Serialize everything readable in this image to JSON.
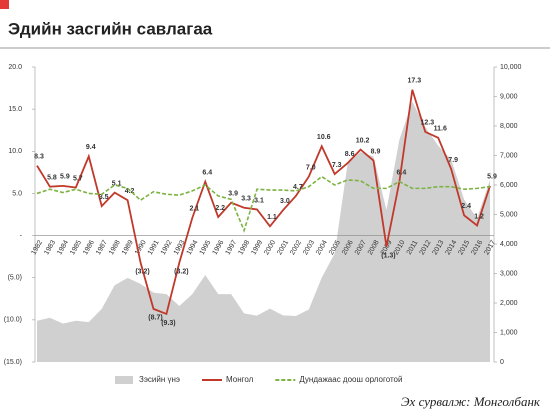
{
  "chart_data": {
    "type": "line",
    "title": "Эдийн засгийн савлагаа",
    "source": "Эх сурвалж: Монголбанк",
    "categories": [
      "1982",
      "1983",
      "1984",
      "1985",
      "1986",
      "1987",
      "1988",
      "1989",
      "1990",
      "1991",
      "1992",
      "1993",
      "1994",
      "1995",
      "1996",
      "1997",
      "1998",
      "1999",
      "2000",
      "2001",
      "2002",
      "2003",
      "2004",
      "2005",
      "2006",
      "2007",
      "2008",
      "2009",
      "2010",
      "2011",
      "2012",
      "2013",
      "2014",
      "2015",
      "2016",
      "2017"
    ],
    "ylim": [
      -15,
      20
    ],
    "yticks": [
      {
        "value": -15,
        "label": "(15.0)"
      },
      {
        "value": -10,
        "label": "(10.0)"
      },
      {
        "value": -5,
        "label": "(5.0)"
      },
      {
        "value": 0,
        "label": "-"
      },
      {
        "value": 5,
        "label": "5.0"
      },
      {
        "value": 10,
        "label": "10.0"
      },
      {
        "value": 15,
        "label": "15.0"
      },
      {
        "value": 20,
        "label": "20.0"
      }
    ],
    "y2lim": [
      0,
      10000
    ],
    "y2ticks": [
      0,
      {
        "value": 1000,
        "label": "1,000"
      },
      {
        "value": 2000,
        "label": "2,000"
      },
      {
        "value": 3000,
        "label": "3,000"
      },
      {
        "value": 4000,
        "label": "4,000"
      },
      {
        "value": 5000,
        "label": "5,000"
      },
      {
        "value": 6000,
        "label": "6,000"
      },
      {
        "value": 7000,
        "label": "7,000"
      },
      {
        "value": 8000,
        "label": "8,000"
      },
      {
        "value": 9000,
        "label": "9,000"
      },
      {
        "value": 10000,
        "label": "10,000"
      }
    ],
    "series": [
      {
        "name": "Зэсийн үнэ",
        "type": "area",
        "axis": "y2",
        "color": "#d0d0d0",
        "values": [
          1400,
          1500,
          1300,
          1400,
          1350,
          1800,
          2600,
          2850,
          2650,
          2350,
          2300,
          1900,
          2300,
          2950,
          2300,
          2300,
          1650,
          1570,
          1810,
          1580,
          1560,
          1780,
          2860,
          3680,
          6730,
          7120,
          6960,
          5150,
          7540,
          8820,
          7960,
          7330,
          6860,
          5510,
          4870,
          6170
        ]
      },
      {
        "name": "Монгол",
        "type": "line",
        "color": "#c0392b",
        "values": [
          8.3,
          5.8,
          5.9,
          5.7,
          9.4,
          3.5,
          5.1,
          4.2,
          -3.2,
          -8.7,
          -9.3,
          -3.2,
          2.1,
          6.4,
          2.2,
          3.9,
          3.3,
          3.1,
          1.1,
          3,
          4.7,
          7,
          10.6,
          7.3,
          8.6,
          10.2,
          8.9,
          -1.3,
          6.4,
          17.3,
          12.3,
          11.6,
          7.9,
          2.4,
          1.2,
          5.9
        ],
        "value_labels": [
          "8.3",
          "5.8",
          "5.9",
          "5.7",
          "9.4",
          "3.5",
          "5.1",
          "4.2",
          "(3.2)",
          "(8.7)",
          "(9.3)",
          "(3.2)",
          "2.1",
          "6.4",
          "2.2",
          "3.9",
          "3.3",
          "3.1",
          "1.1",
          "3.0",
          "4.7",
          "7.0",
          "10.6",
          "7.3",
          "8.6",
          "10.2",
          "8.9",
          "(1.3)",
          "6.4",
          "17.3",
          "12.3",
          "11.6",
          "7.9",
          "2.4",
          "1.2",
          "5.9"
        ]
      },
      {
        "name": "Дундажаас доош орлоготой",
        "type": "dashed",
        "color": "#7cb342",
        "values": [
          5.0,
          5.5,
          5.1,
          5.5,
          5.0,
          4.9,
          6.0,
          5.6,
          4.2,
          5.2,
          4.9,
          4.8,
          5.3,
          6.0,
          4.7,
          4.3,
          0.6,
          5.5,
          5.4,
          5.4,
          5.3,
          5.8,
          7.0,
          6.0,
          6.6,
          6.5,
          5.6,
          5.6,
          6.4,
          5.6,
          5.6,
          5.8,
          5.8,
          5.5,
          5.6,
          5.8
        ]
      }
    ]
  }
}
